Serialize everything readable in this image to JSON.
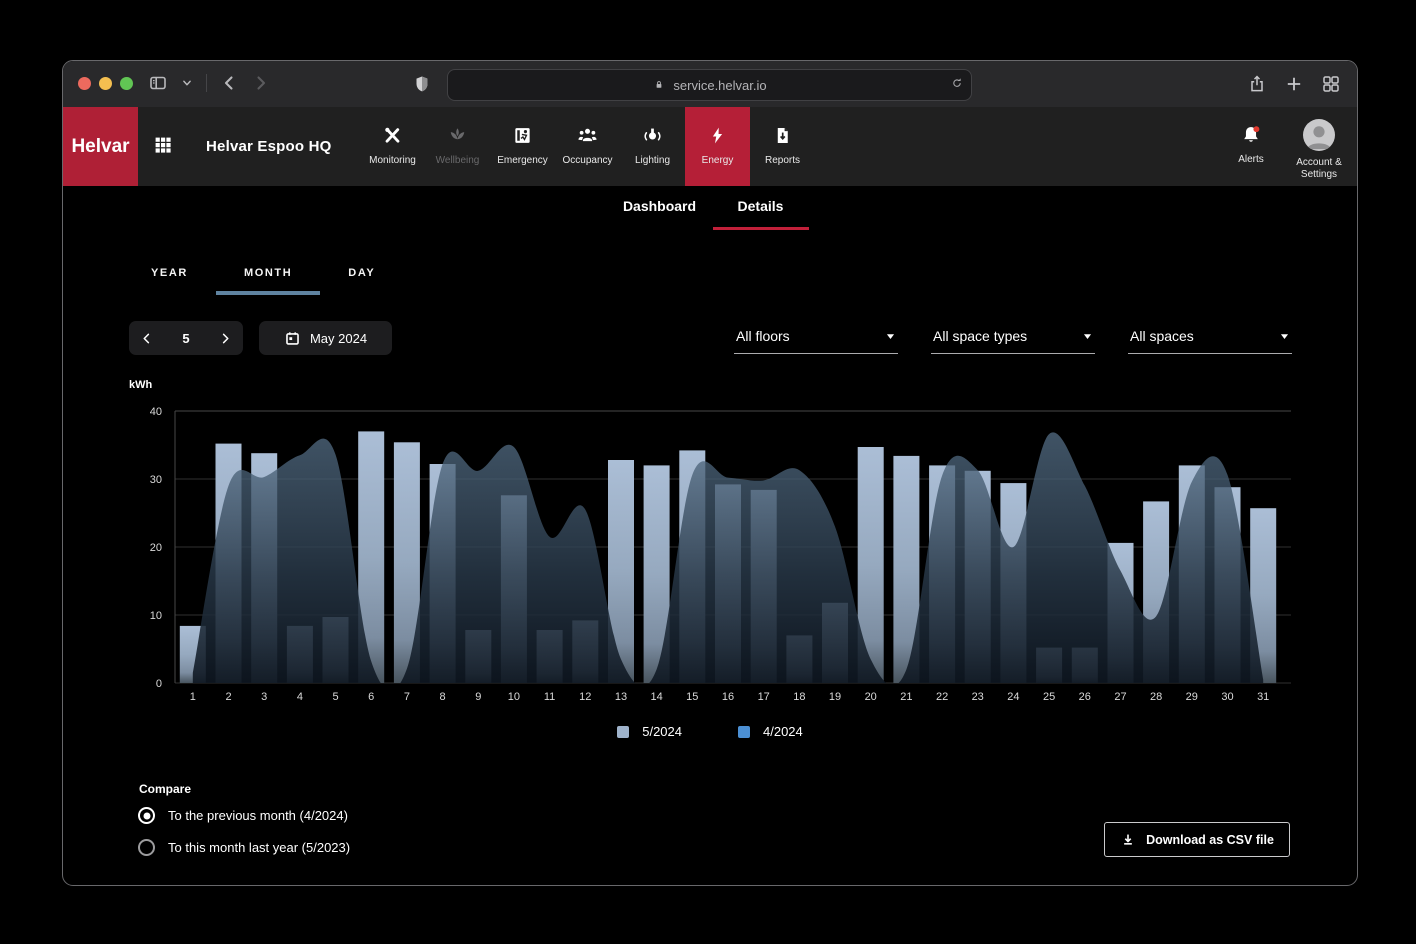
{
  "browser": {
    "url": "service.helvar.io"
  },
  "header": {
    "logo": "Helvar",
    "site_name": "Helvar Espoo HQ",
    "nav": [
      {
        "label": "Monitoring",
        "icon": "monitoring-icon",
        "state": "normal"
      },
      {
        "label": "Wellbeing",
        "icon": "wellbeing-icon",
        "state": "disabled"
      },
      {
        "label": "Emergency",
        "icon": "emergency-icon",
        "state": "normal"
      },
      {
        "label": "Occupancy",
        "icon": "occupancy-icon",
        "state": "normal"
      },
      {
        "label": "Lighting",
        "icon": "lighting-icon",
        "state": "normal"
      },
      {
        "label": "Energy",
        "icon": "energy-icon",
        "state": "active"
      },
      {
        "label": "Reports",
        "icon": "reports-icon",
        "state": "normal"
      }
    ],
    "alerts_label": "Alerts",
    "account_label": "Account & Settings"
  },
  "tabs": {
    "items": [
      {
        "label": "Dashboard",
        "active": false
      },
      {
        "label": "Details",
        "active": true
      }
    ]
  },
  "period_tabs": {
    "items": [
      {
        "label": "YEAR",
        "active": false
      },
      {
        "label": "MONTH",
        "active": true
      },
      {
        "label": "DAY",
        "active": false
      }
    ]
  },
  "controls": {
    "month_stepper": {
      "value": "5"
    },
    "month_picker": {
      "label": "May 2024"
    },
    "filters": [
      {
        "label": "All floors"
      },
      {
        "label": "All space types"
      },
      {
        "label": "All spaces"
      }
    ]
  },
  "chart_data": {
    "type": "bar",
    "title": "",
    "ylabel": "kWh",
    "xlabel": "",
    "ylim": [
      0,
      40
    ],
    "yticks": [
      0,
      10,
      20,
      30,
      40
    ],
    "grid": "horizontal",
    "legend_position": "bottom",
    "categories": [
      1,
      2,
      3,
      4,
      5,
      6,
      7,
      8,
      9,
      10,
      11,
      12,
      13,
      14,
      15,
      16,
      17,
      18,
      19,
      20,
      21,
      22,
      23,
      24,
      25,
      26,
      27,
      28,
      29,
      30,
      31
    ],
    "series": [
      {
        "name": "5/2024",
        "type": "bar",
        "color": "#9FB3CB",
        "values": [
          8.4,
          35.2,
          33.8,
          8.4,
          9.7,
          37,
          35.4,
          32.2,
          7.8,
          27.6,
          7.8,
          9.2,
          32.8,
          32,
          34.2,
          29.2,
          28.4,
          7,
          11.8,
          34.7,
          33.4,
          32,
          31.2,
          29.4,
          5.2,
          5.2,
          20.6,
          26.7,
          32,
          28.8,
          25.7
        ]
      },
      {
        "name": "4/2024",
        "type": "area",
        "color": "#4C90D4",
        "values": [
          1.5,
          29,
          30.3,
          33.5,
          33.6,
          3.2,
          2.1,
          32.2,
          31.2,
          34.7,
          21.5,
          25.5,
          3.5,
          2,
          30.6,
          30.2,
          29.8,
          31.3,
          23,
          3.5,
          2,
          30.5,
          31.3,
          20,
          36.6,
          29,
          16.5,
          9.8,
          29.6,
          30.6,
          0.5
        ]
      }
    ]
  },
  "compare": {
    "title": "Compare",
    "options": [
      {
        "label": "To the previous month (4/2024)",
        "selected": true
      },
      {
        "label": "To this month last year (5/2023)",
        "selected": false
      }
    ]
  },
  "download": {
    "label": "Download as CSV file"
  },
  "colors": {
    "brand_red": "#AF2036",
    "energy_red": "#B51F37",
    "underline_red": "#C2203A",
    "month_underline": "#5F83A0",
    "alert_dot": "#E2392F",
    "bar_color": "#9FB3CB",
    "comparison_color": "#4C90D4"
  }
}
